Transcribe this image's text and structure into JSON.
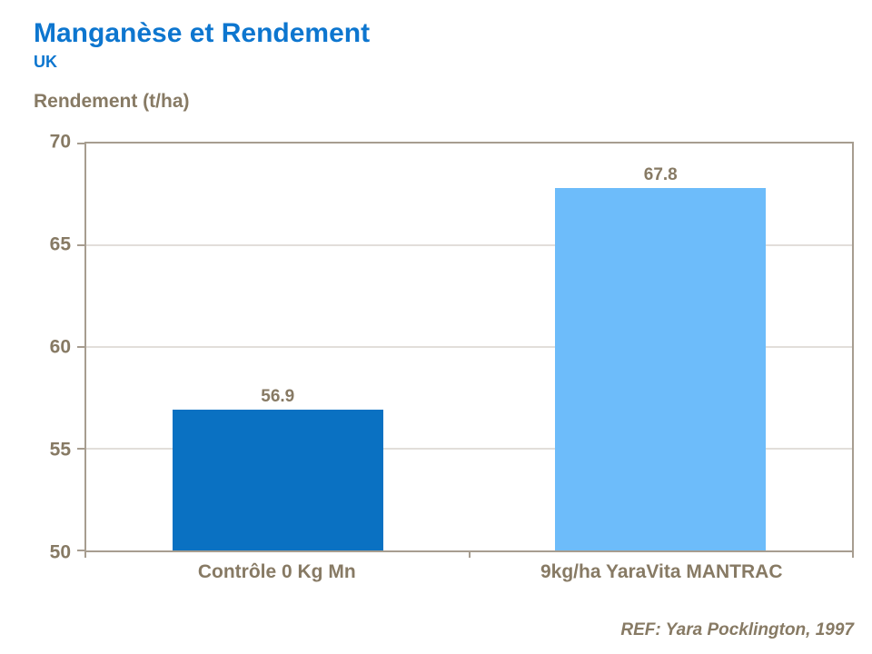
{
  "header": {
    "title": "Manganèse et Rendement",
    "subtitle": "UK"
  },
  "chart_data": {
    "type": "bar",
    "categories": [
      "Contrôle 0 Kg Mn",
      "9kg/ha YaraVita MANTRAC"
    ],
    "values": [
      56.9,
      67.8
    ],
    "value_labels": [
      "56.9",
      "67.8"
    ],
    "bar_colors": [
      "#0a71c2",
      "#6dbcfa"
    ],
    "title": "Manganèse et Rendement",
    "subtitle": "UK",
    "xlabel": "",
    "ylabel": "Rendement (t/ha)",
    "ylim": [
      50,
      70
    ],
    "yticks": [
      50,
      55,
      60,
      65,
      70
    ],
    "grid": true,
    "legend": "none"
  },
  "footer": {
    "reference": "REF: Yara Pocklington, 1997"
  },
  "colors": {
    "title_color": "#0d76cf",
    "text_color": "#877a64",
    "axis_color": "#a79d90",
    "gridline_color": "#c6beb4",
    "bg_color": "#ffffff"
  }
}
